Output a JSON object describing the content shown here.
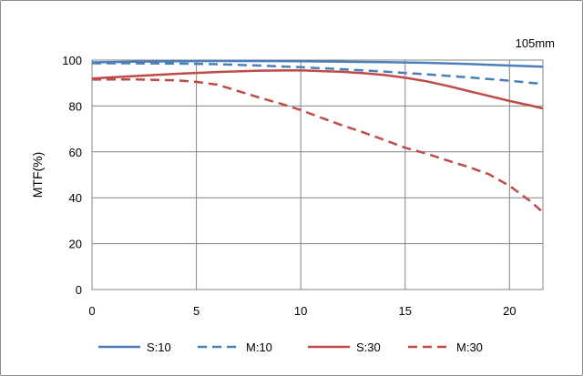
{
  "chart_data": {
    "type": "line",
    "title": "",
    "annotation": "105mm",
    "xlabel": "",
    "ylabel": "MTF(%)",
    "xlim": [
      0,
      21.6
    ],
    "ylim": [
      0,
      100
    ],
    "xticks": [
      0,
      5,
      10,
      15,
      20
    ],
    "yticks": [
      0,
      20,
      40,
      60,
      80,
      100
    ],
    "grid": true,
    "legend_position": "bottom",
    "series": [
      {
        "name": "S:10",
        "color": "#4a7ebb",
        "dash": "solid",
        "x": [
          0,
          2,
          4,
          6,
          8,
          10,
          12,
          14,
          16,
          18,
          20,
          21.6
        ],
        "y": [
          99,
          99.3,
          99.5,
          99.6,
          99.6,
          99.5,
          99.3,
          99.1,
          98.8,
          98.3,
          97.6,
          97.1
        ]
      },
      {
        "name": "M:10",
        "color": "#4a7ebb",
        "dash": "dashed",
        "x": [
          0,
          2,
          4,
          6,
          8,
          10,
          12,
          14,
          16,
          18,
          20,
          21.6
        ],
        "y": [
          98.6,
          98.6,
          98.5,
          98.2,
          97.6,
          96.9,
          96,
          95,
          93.8,
          92.5,
          91,
          89.6
        ]
      },
      {
        "name": "S:30",
        "color": "#be4b48",
        "dash": "solid",
        "x": [
          0,
          2,
          4,
          6,
          8,
          10,
          11,
          12,
          13,
          14,
          15,
          16,
          17,
          18,
          19,
          20,
          21,
          21.6
        ],
        "y": [
          92,
          93,
          94,
          94.8,
          95.4,
          95.5,
          95.2,
          94.9,
          94.3,
          93.5,
          92.3,
          90.8,
          88.8,
          86.6,
          84.4,
          82.2,
          80.2,
          78.9
        ]
      },
      {
        "name": "M:30",
        "color": "#be4b48",
        "dash": "dashed",
        "x": [
          0,
          2,
          4,
          5,
          6,
          7,
          8,
          9,
          10,
          11,
          12,
          13,
          14,
          15,
          16,
          17,
          18,
          19,
          20,
          21,
          21.6
        ],
        "y": [
          91.5,
          91.6,
          91.2,
          90.5,
          89.3,
          86.5,
          83.7,
          81.1,
          78.2,
          74.8,
          71.5,
          68.5,
          65.2,
          61.8,
          59.3,
          56.3,
          53.5,
          50.3,
          45.2,
          38.5,
          33.6
        ]
      }
    ]
  }
}
